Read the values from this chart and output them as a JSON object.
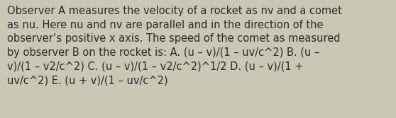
{
  "text": "Observer A measures the velocity of a rocket as nv and a comet\nas nu. Here nu and nv are parallel and in the direction of the\nobserver’s positive x axis. The speed of the comet as measured\nby observer B on the rocket is: A. (u – v)/(1 – uv/c^2) B. (u –\nv)/(1 – v2/c^2) C. (u – v)/(1 – v2/c^2)^1/2 D. (u – v)/(1 +\nuv/c^2) E. (u + v)/(1 – uv/c^2)",
  "background_color": "#c8c8b4",
  "text_color": "#2b2b2b",
  "font_size": 10.5,
  "fig_width": 5.58,
  "fig_height": 1.67,
  "dpi": 100
}
